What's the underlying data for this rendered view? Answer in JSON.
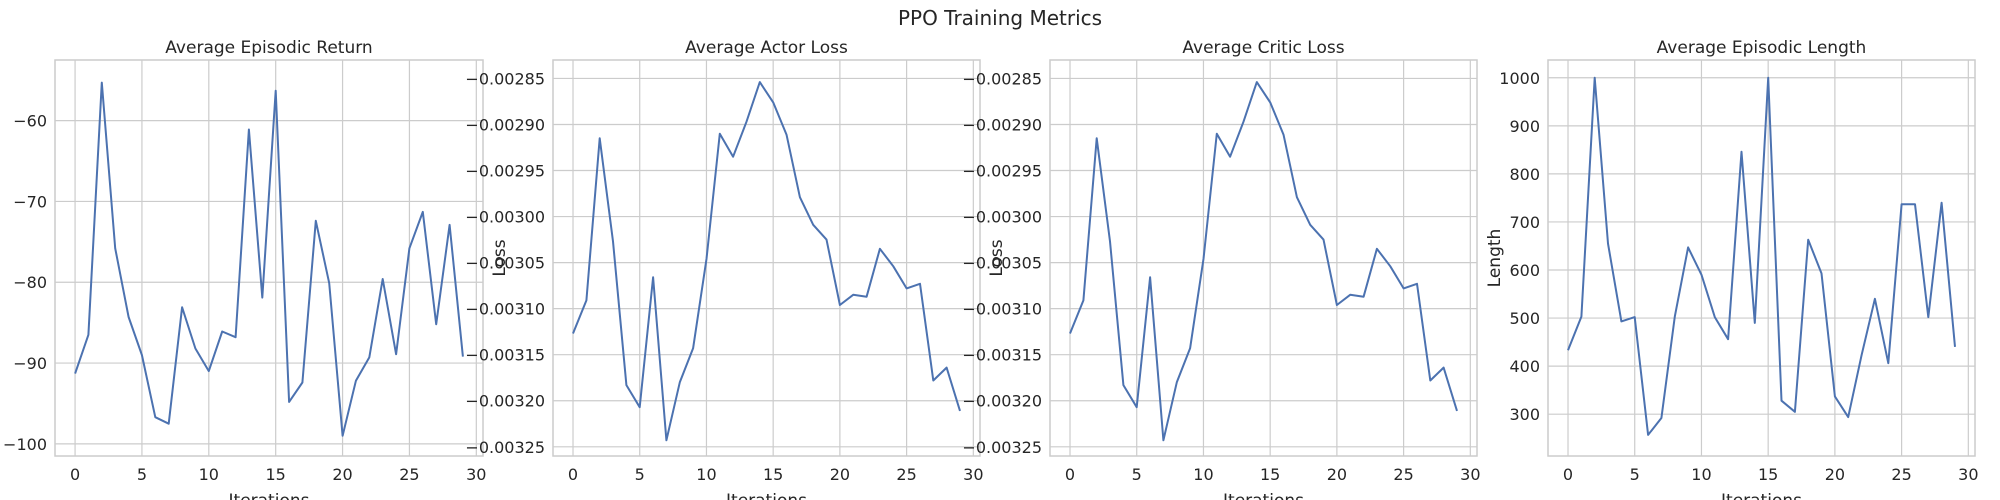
{
  "figure": {
    "title": "PPO Training Metrics"
  },
  "colors": {
    "line": "#4c72b0",
    "grid": "#cccccc",
    "frame": "#cccccc"
  },
  "chart_data": [
    {
      "type": "line",
      "title": "Average Episodic Return",
      "xlabel": "Iterations",
      "ylabel": "",
      "xlim": [
        -1.5,
        30.5
      ],
      "ylim": [
        -101.5,
        -52.5
      ],
      "xticks": [
        0,
        5,
        10,
        15,
        20,
        25,
        30
      ],
      "yticks": [
        -100,
        -90,
        -80,
        -70,
        -60
      ],
      "ytick_labels": [
        "−100",
        "−90",
        "−80",
        "−70",
        "−60"
      ],
      "grid": true,
      "series": [
        {
          "x": [
            0,
            1,
            2,
            3,
            4,
            5,
            6,
            7,
            8,
            9,
            10,
            11,
            12,
            13,
            14,
            15,
            16,
            17,
            18,
            19,
            20,
            21,
            22,
            23,
            24,
            25,
            26,
            27,
            28,
            29
          ],
          "y": [
            -91.3,
            -86.5,
            -55.3,
            -75.8,
            -84.3,
            -89.0,
            -96.7,
            -97.5,
            -83.1,
            -88.2,
            -91.0,
            -86.1,
            -86.8,
            -61.1,
            -81.9,
            -56.3,
            -94.8,
            -92.4,
            -72.4,
            -80.1,
            -99.0,
            -92.2,
            -89.3,
            -79.6,
            -88.9,
            -75.8,
            -71.3,
            -85.2,
            -72.9,
            -89.2
          ]
        }
      ]
    },
    {
      "type": "line",
      "title": "Average Actor Loss",
      "xlabel": "Iterations",
      "ylabel": "Loss",
      "xlim": [
        -1.5,
        30.5
      ],
      "ylim": [
        -0.00326,
        -0.00283
      ],
      "xticks": [
        0,
        5,
        10,
        15,
        20,
        25,
        30
      ],
      "yticks": [
        -0.00325,
        -0.0032,
        -0.00315,
        -0.0031,
        -0.00305,
        -0.003,
        -0.00295,
        -0.0029,
        -0.00285
      ],
      "ytick_labels": [
        "−0.00325",
        "−0.00320",
        "−0.00315",
        "−0.00310",
        "−0.00305",
        "−0.00300",
        "−0.00295",
        "−0.00290",
        "−0.00285"
      ],
      "grid": true,
      "series": [
        {
          "x": [
            0,
            1,
            2,
            3,
            4,
            5,
            6,
            7,
            8,
            9,
            10,
            11,
            12,
            13,
            14,
            15,
            16,
            17,
            18,
            19,
            20,
            21,
            22,
            23,
            24,
            25,
            26,
            27,
            28,
            29
          ],
          "y": [
            -0.003127,
            -0.003091,
            -0.002915,
            -0.003027,
            -0.003183,
            -0.003207,
            -0.003066,
            -0.003243,
            -0.00318,
            -0.003143,
            -0.003046,
            -0.00291,
            -0.002935,
            -0.002897,
            -0.002854,
            -0.002876,
            -0.002911,
            -0.002979,
            -0.003009,
            -0.003025,
            -0.003096,
            -0.003085,
            -0.003087,
            -0.003035,
            -0.003054,
            -0.003078,
            -0.003073,
            -0.003178,
            -0.003164,
            -0.003211
          ]
        }
      ]
    },
    {
      "type": "line",
      "title": "Average Critic Loss",
      "xlabel": "Iterations",
      "ylabel": "Loss",
      "xlim": [
        -1.5,
        30.5
      ],
      "ylim": [
        -0.00326,
        -0.00283
      ],
      "xticks": [
        0,
        5,
        10,
        15,
        20,
        25,
        30
      ],
      "yticks": [
        -0.00325,
        -0.0032,
        -0.00315,
        -0.0031,
        -0.00305,
        -0.003,
        -0.00295,
        -0.0029,
        -0.00285
      ],
      "ytick_labels": [
        "−0.00325",
        "−0.00320",
        "−0.00315",
        "−0.00310",
        "−0.00305",
        "−0.00300",
        "−0.00295",
        "−0.00290",
        "−0.00285"
      ],
      "grid": true,
      "series": [
        {
          "x": [
            0,
            1,
            2,
            3,
            4,
            5,
            6,
            7,
            8,
            9,
            10,
            11,
            12,
            13,
            14,
            15,
            16,
            17,
            18,
            19,
            20,
            21,
            22,
            23,
            24,
            25,
            26,
            27,
            28,
            29
          ],
          "y": [
            -0.003127,
            -0.003091,
            -0.002915,
            -0.003027,
            -0.003183,
            -0.003207,
            -0.003066,
            -0.003243,
            -0.00318,
            -0.003143,
            -0.003046,
            -0.00291,
            -0.002935,
            -0.002897,
            -0.002854,
            -0.002876,
            -0.002911,
            -0.002979,
            -0.003009,
            -0.003025,
            -0.003096,
            -0.003085,
            -0.003087,
            -0.003035,
            -0.003054,
            -0.003078,
            -0.003073,
            -0.003178,
            -0.003164,
            -0.003211
          ]
        }
      ]
    },
    {
      "type": "line",
      "title": "Average Episodic Length",
      "xlabel": "Iterations",
      "ylabel": "Length",
      "xlim": [
        -1.5,
        30.5
      ],
      "ylim": [
        213,
        1037
      ],
      "xticks": [
        0,
        5,
        10,
        15,
        20,
        25,
        30
      ],
      "yticks": [
        300,
        400,
        500,
        600,
        700,
        800,
        900,
        1000
      ],
      "ytick_labels": [
        "300",
        "400",
        "500",
        "600",
        "700",
        "800",
        "900",
        "1000"
      ],
      "grid": true,
      "series": [
        {
          "x": [
            0,
            1,
            2,
            3,
            4,
            5,
            6,
            7,
            8,
            9,
            10,
            11,
            12,
            13,
            14,
            15,
            16,
            17,
            18,
            19,
            20,
            21,
            22,
            23,
            24,
            25,
            26,
            27,
            28,
            29
          ],
          "y": [
            433,
            503,
            1000,
            655,
            493,
            502,
            257,
            292,
            503,
            647,
            590,
            502,
            456,
            846,
            490,
            1000,
            328,
            305,
            663,
            593,
            337,
            294,
            423,
            540,
            406,
            737,
            737,
            502,
            740,
            440
          ]
        }
      ]
    }
  ]
}
